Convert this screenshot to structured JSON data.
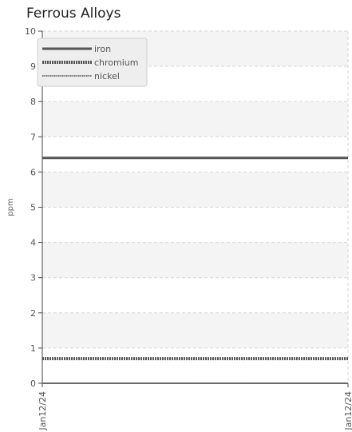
{
  "chart_data": {
    "type": "line",
    "title": "Ferrous Alloys",
    "xlabel": "",
    "ylabel": "ppm",
    "x": [
      "Jan12/24",
      "Jan12/24"
    ],
    "ylim": [
      0,
      10
    ],
    "yticks": [
      0,
      1,
      2,
      3,
      4,
      5,
      6,
      7,
      8,
      9,
      10
    ],
    "series": [
      {
        "name": "iron",
        "values": [
          6.4,
          6.4
        ],
        "color": "#555555",
        "style": "solid"
      },
      {
        "name": "chromium",
        "values": [
          0.7,
          0.7
        ],
        "color": "#555555",
        "style": "dashed"
      },
      {
        "name": "nickel",
        "values": [
          0,
          0
        ],
        "color": "#666666",
        "style": "dotted"
      }
    ],
    "grid": true,
    "alternating_bands": true,
    "legend_position": "top-left"
  }
}
